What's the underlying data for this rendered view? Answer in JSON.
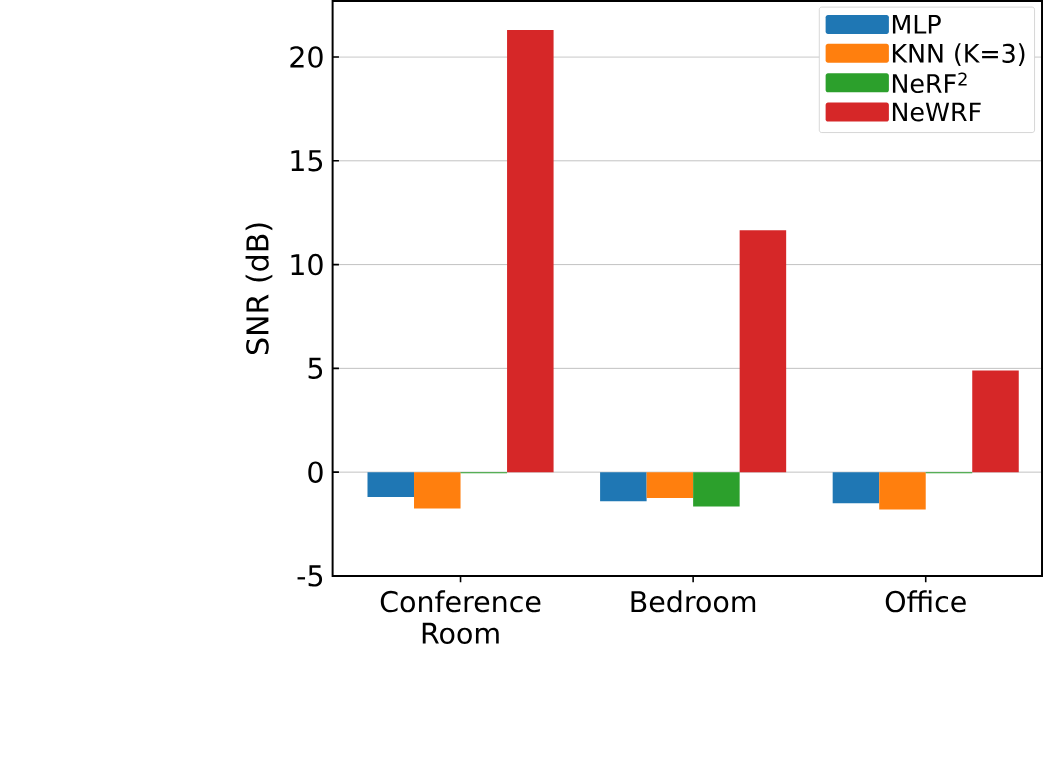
{
  "chart_data": {
    "type": "bar",
    "ylabel": "SNR (dB)",
    "categories": [
      "Conference Room",
      "Bedroom",
      "Office"
    ],
    "series": [
      {
        "name": "MLP",
        "color": "#1f77b4",
        "values": [
          -1.2,
          -1.4,
          -1.5
        ]
      },
      {
        "name": "KNN (K=3)",
        "color": "#ff7f0e",
        "values": [
          -1.75,
          -1.25,
          -1.8
        ]
      },
      {
        "name": "NeRF$^{2}$",
        "color": "#2ca02c",
        "values": [
          -0.05,
          -1.65,
          -0.05
        ]
      },
      {
        "name": "NeWRF",
        "color": "#d62728",
        "values": [
          21.3,
          11.65,
          4.9
        ]
      }
    ],
    "ylim": [
      -5,
      22.7
    ],
    "yticks": [
      -5,
      0,
      5,
      10,
      15,
      20
    ],
    "grid": "y",
    "legend": "top right"
  }
}
